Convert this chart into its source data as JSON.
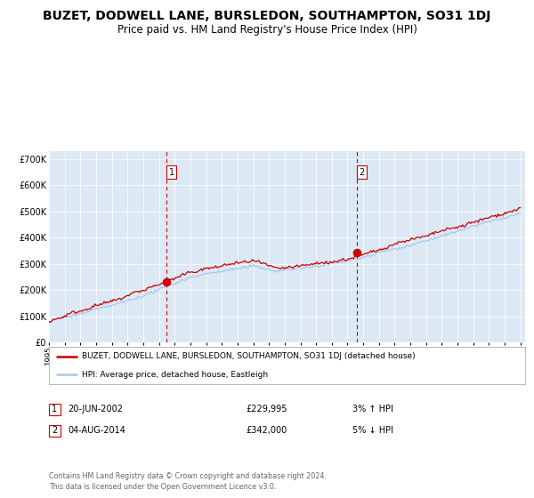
{
  "title": "BUZET, DODWELL LANE, BURSLEDON, SOUTHAMPTON, SO31 1DJ",
  "subtitle": "Price paid vs. HM Land Registry's House Price Index (HPI)",
  "title_fontsize": 10,
  "subtitle_fontsize": 8.5,
  "background_color": "#ffffff",
  "plot_bg_color": "#dce9f5",
  "ylabel_ticks": [
    "£0",
    "£100K",
    "£200K",
    "£300K",
    "£400K",
    "£500K",
    "£600K",
    "£700K"
  ],
  "ytick_values": [
    0,
    100000,
    200000,
    300000,
    400000,
    500000,
    600000,
    700000
  ],
  "ylim": [
    0,
    730000
  ],
  "year_start": 1995,
  "year_end": 2025,
  "sale1_x": 2002.47,
  "sale1_price": 229995,
  "sale2_x": 2014.59,
  "sale2_price": 342000,
  "legend_line1": "BUZET, DODWELL LANE, BURSLEDON, SOUTHAMPTON, SO31 1DJ (detached house)",
  "legend_line2": "HPI: Average price, detached house, Eastleigh",
  "footer1": "Contains HM Land Registry data © Crown copyright and database right 2024.",
  "footer2": "This data is licensed under the Open Government Licence v3.0.",
  "table_row1": [
    "1",
    "20-JUN-2002",
    "£229,995",
    "3% ↑ HPI"
  ],
  "table_row2": [
    "2",
    "04-AUG-2014",
    "£342,000",
    "5% ↓ HPI"
  ],
  "hpi_color": "#a8c8e8",
  "price_color": "#cc0000",
  "dashed_color": "#cc0000",
  "grid_color": "#ffffff",
  "dot_color": "#cc0000"
}
